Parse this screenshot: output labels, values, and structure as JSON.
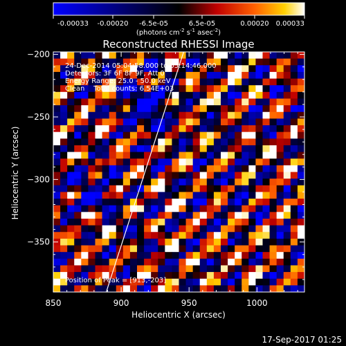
{
  "colorbar": {
    "ticks": [
      "-0.00033",
      "-0.00020",
      "-6.5e-05",
      "6.5e-05",
      "0.00020",
      "0.00033"
    ],
    "unit": {
      "pre": "(photons cm",
      "exp1": "-2",
      "mid1": " s",
      "exp2": "-1",
      "mid2": " asec",
      "exp3": "-2",
      "post": ")"
    }
  },
  "info": {
    "time": "24-Dec-2014 05:04:58.000 to 05:14:46.000",
    "detectors": "Detectors: 3F 6F 8F 9F, Att 0",
    "energy": "Energy Range: 25.0 - 50.0 keV",
    "algo": "Clean    Total counts: 6.54E+03",
    "peak": "Position of Peak = [913,-203]"
  },
  "footer": {
    "datetime": "17-Sep-2017 01:25"
  },
  "chart_data": {
    "type": "heatmap",
    "title": "Reconstructed RHESSI Image",
    "xlabel": "Heliocentric X (arcsec)",
    "ylabel": "Heliocentric Y (arcsec)",
    "xlim": [
      850,
      1035
    ],
    "ylim": [
      -390,
      -198
    ],
    "xticks": [
      850,
      900,
      950,
      1000
    ],
    "yticks": [
      -200,
      -250,
      -300,
      -350
    ],
    "colormap": "blue-black-red-yellow-white",
    "clim": [
      -0.00033,
      0.00033
    ],
    "limb_line": [
      [
        889,
        -390
      ],
      [
        946,
        -198
      ]
    ]
  }
}
